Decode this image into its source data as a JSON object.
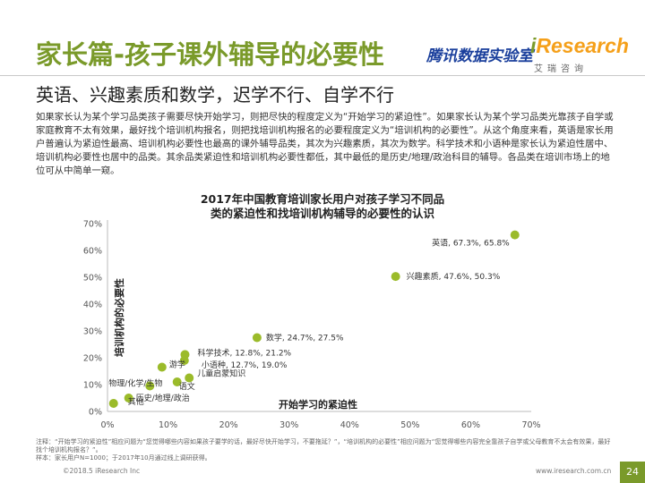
{
  "header": {
    "title": "家长篇-孩子课外辅导的必要性",
    "brand_zh": "腾讯数据实验室",
    "logo_i": "i",
    "logo_rest": "Research",
    "logo_sub": "艾瑞咨询"
  },
  "subtitle": "英语、兴趣素质和数学，迟学不行、自学不行",
  "body": "如果家长认为某个学习品类孩子需要尽快开始学习，则把尽快的程度定义为“开始学习的紧迫性”。如果家长认为某个学习品类光靠孩子自学或家庭教育不太有效果，最好找个培训机构报名，则把找培训机构报名的必要程度定义为“培训机构的必要性”。从这个角度来看，英语是家长用户普遍认为紧迫性最高、培训机构必要性也最高的课外辅导品类，其次为兴趣素质，其次为数学。科学技术和小语种是家长认为紧迫性居中、培训机构必要性也居中的品类。其余品类紧迫性和培训机构必要性都低，其中最低的是历史/地理/政治科目的辅导。各品类在培训市场上的地位可从中简单一窥。",
  "chart_data": {
    "type": "scatter",
    "title_line1": "2017年中国教育培训家长用户对孩子学习不同品",
    "title_line2": "类的紧迫性和找培训机构辅导的必要性的认识",
    "xlabel": "开始学习的紧迫性",
    "ylabel": "培训机构的必要性",
    "xlim": [
      0,
      70
    ],
    "ylim": [
      0,
      70
    ],
    "x_ticks": [
      "0%",
      "10%",
      "20%",
      "30%",
      "40%",
      "50%",
      "60%",
      "70%"
    ],
    "y_ticks": [
      "0%",
      "10%",
      "20%",
      "30%",
      "40%",
      "50%",
      "60%",
      "70%"
    ],
    "point_color": "#9bbb2a",
    "points": [
      {
        "label": "英语, 67.3%, 65.8%",
        "x": 67.3,
        "y": 65.8
      },
      {
        "label": "兴趣素质, 47.6%, 50.3%",
        "x": 47.6,
        "y": 50.3
      },
      {
        "label": "数学, 24.7%, 27.5%",
        "x": 24.7,
        "y": 27.5
      },
      {
        "label": "科学技术, 12.8%, 21.2%",
        "x": 12.8,
        "y": 21.2
      },
      {
        "label": "小语种, 12.7%, 19.0%",
        "x": 12.7,
        "y": 19.0
      },
      {
        "label": "游学",
        "x": 9.0,
        "y": 16.5
      },
      {
        "label": "儿童启蒙知识",
        "x": 13.5,
        "y": 12.5
      },
      {
        "label": "语文",
        "x": 11.5,
        "y": 11.0
      },
      {
        "label": "物理/化学/生物",
        "x": 7.0,
        "y": 9.5
      },
      {
        "label": "历史/地理/政治",
        "x": 3.5,
        "y": 5.0
      },
      {
        "label": "其他",
        "x": 1.0,
        "y": 3.0
      }
    ]
  },
  "footnote": {
    "line1": "注释：“开始学习的紧迫性”相应问题为“您觉得哪些内容如果孩子要学的话，最好尽快开始学习，不要拖延？”，“培训机构的必要性”相应问题为“您觉得哪些内容完全靠孩子自学或父母教育不太会有效果，最好找个培训机构报名？”。",
    "line2": "样本：家长用户N=1000；于2017年10月通过线上调研获得。"
  },
  "footer": {
    "left": "©2018.5 iResearch Inc",
    "right": "www.iresearch.com.cn",
    "page": "24"
  }
}
